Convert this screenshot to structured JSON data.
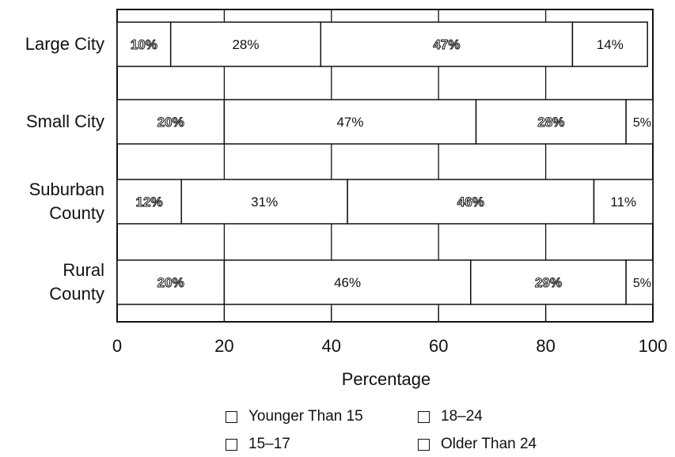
{
  "chart_data": {
    "type": "bar",
    "orientation": "horizontal-stacked",
    "categories": [
      "Large City",
      "Small City",
      "Suburban County",
      "Rural County"
    ],
    "category_lines": [
      [
        "Large City"
      ],
      [
        "Small City"
      ],
      [
        "Suburban",
        "County"
      ],
      [
        "Rural",
        "County"
      ]
    ],
    "series": [
      {
        "name": "Younger Than 15",
        "values": [
          10,
          20,
          12,
          20
        ]
      },
      {
        "name": "15–17",
        "values": [
          28,
          47,
          31,
          46
        ]
      },
      {
        "name": "18–24",
        "values": [
          47,
          28,
          46,
          29
        ]
      },
      {
        "name": "Older Than 24",
        "values": [
          14,
          5,
          11,
          5
        ]
      }
    ],
    "value_labels": [
      [
        "10%",
        "28%",
        "47%",
        "14%"
      ],
      [
        "20%",
        "47%",
        "28%",
        "5%"
      ],
      [
        "12%",
        "31%",
        "46%",
        "11%"
      ],
      [
        "20%",
        "46%",
        "29%",
        "5%"
      ]
    ],
    "label_style": [
      "outline",
      "plain",
      "outline",
      "plain"
    ],
    "xlabel": "Percentage",
    "xlim": [
      0,
      100
    ],
    "xticks": [
      0,
      20,
      40,
      60,
      80,
      100
    ],
    "grid": true,
    "legend_position": "bottom"
  },
  "legend": {
    "items": [
      "Younger Than 15",
      "18–24",
      "15–17",
      "Older Than 24"
    ]
  }
}
